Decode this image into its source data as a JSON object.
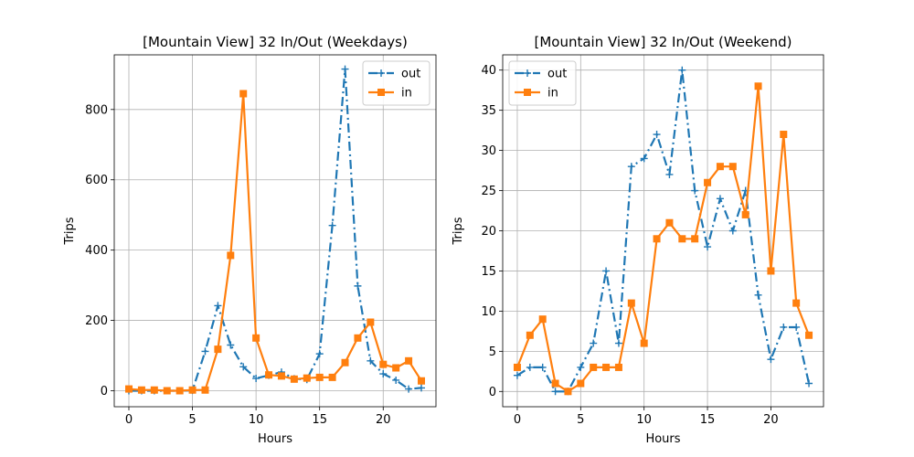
{
  "colors": {
    "out": "#1f77b4",
    "in": "#ff7f0e"
  },
  "chart_data": [
    {
      "type": "line",
      "title": "[Mountain View] 32 In/Out (Weekdays)",
      "xlabel": "Hours",
      "ylabel": "Trips",
      "xlim": [
        -1.15,
        24.15
      ],
      "ylim": [
        -45.5,
        955.5
      ],
      "xticks": [
        0,
        5,
        10,
        15,
        20
      ],
      "yticks": [
        0,
        200,
        400,
        600,
        800
      ],
      "grid": true,
      "legend_position": "upper right",
      "x": [
        0,
        1,
        2,
        3,
        4,
        5,
        6,
        7,
        8,
        9,
        10,
        11,
        12,
        13,
        14,
        15,
        16,
        17,
        18,
        19,
        20,
        21,
        22,
        23
      ],
      "series": [
        {
          "name": "out",
          "style": "dash-dot",
          "marker": "plus",
          "values": [
            0,
            0,
            0,
            0,
            0,
            1,
            112,
            242,
            130,
            68,
            35,
            44,
            53,
            34,
            32,
            105,
            470,
            915,
            298,
            85,
            48,
            30,
            5,
            8
          ]
        },
        {
          "name": "in",
          "style": "solid",
          "marker": "square",
          "values": [
            5,
            2,
            2,
            0,
            0,
            2,
            2,
            118,
            385,
            845,
            150,
            45,
            42,
            33,
            36,
            38,
            38,
            80,
            150,
            195,
            75,
            65,
            85,
            28
          ]
        }
      ]
    },
    {
      "type": "line",
      "title": "[Mountain View] 32 In/Out (Weekend)",
      "xlabel": "Hours",
      "ylabel": "Trips",
      "xlim": [
        -1.15,
        24.15
      ],
      "ylim": [
        -1.9,
        41.9
      ],
      "xticks": [
        0,
        5,
        10,
        15,
        20
      ],
      "yticks": [
        0,
        5,
        10,
        15,
        20,
        25,
        30,
        35,
        40
      ],
      "grid": true,
      "legend_position": "upper left",
      "x": [
        0,
        1,
        2,
        3,
        4,
        5,
        6,
        7,
        8,
        9,
        10,
        11,
        12,
        13,
        14,
        15,
        16,
        17,
        18,
        19,
        20,
        21,
        22,
        23
      ],
      "series": [
        {
          "name": "out",
          "style": "dash-dot",
          "marker": "plus",
          "values": [
            2,
            3,
            3,
            0,
            0,
            3,
            6,
            15,
            6,
            28,
            29,
            32,
            27,
            40,
            25,
            18,
            24,
            20,
            25,
            12,
            4,
            8,
            8,
            1
          ]
        },
        {
          "name": "in",
          "style": "solid",
          "marker": "square",
          "values": [
            3,
            7,
            9,
            1,
            0,
            1,
            3,
            3,
            3,
            11,
            6,
            19,
            21,
            19,
            19,
            26,
            28,
            28,
            22,
            38,
            15,
            32,
            11,
            7
          ]
        }
      ]
    }
  ]
}
